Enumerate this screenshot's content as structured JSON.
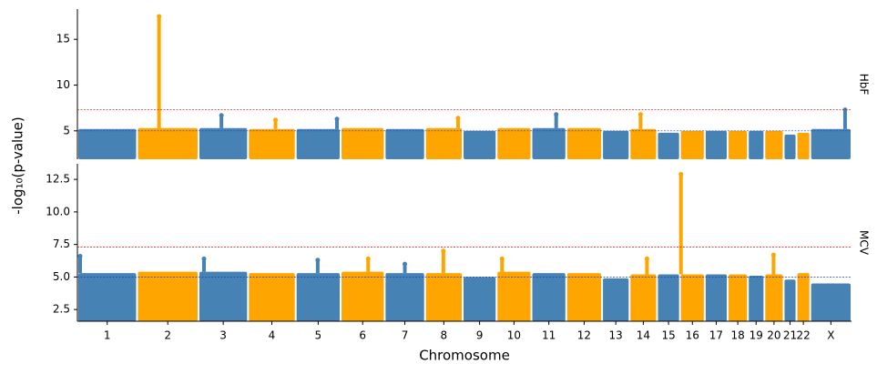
{
  "chart_data": {
    "type": "manhattan",
    "xlabel": "Chromosome",
    "ylabel": "-log₁₀(p-value)",
    "categories": [
      "1",
      "2",
      "3",
      "4",
      "5",
      "6",
      "7",
      "8",
      "9",
      "10",
      "11",
      "12",
      "13",
      "14",
      "15",
      "16",
      "17",
      "18",
      "19",
      "20",
      "21",
      "22",
      "X"
    ],
    "chrom_sizes": [
      65,
      67,
      54,
      52,
      49,
      48,
      44,
      41,
      37,
      38,
      38,
      39,
      30,
      30,
      25,
      27,
      25,
      22,
      18,
      21,
      14,
      15,
      45
    ],
    "colors": [
      "#4682b4",
      "#ffa500"
    ],
    "panels": [
      {
        "label": "HbF",
        "ylim": [
          1.9,
          18.3
        ],
        "yticks": [
          5,
          10,
          15
        ],
        "thresholds": [
          {
            "value": 7.3,
            "color": "#e00000"
          },
          {
            "value": 5,
            "color": "#1f3fbf"
          }
        ],
        "values": [
          5.2,
          5.3,
          5.3,
          5.2,
          5.2,
          5.3,
          5.2,
          5.3,
          5.0,
          5.3,
          5.3,
          5.3,
          5.0,
          5.2,
          4.8,
          5.0,
          5.0,
          5.0,
          5.0,
          5.0,
          4.6,
          4.8,
          5.2
        ],
        "peaks": {
          "chrom": [
            1,
            2,
            3,
            4,
            7,
            10,
            13,
            22
          ],
          "pos": [
            24,
            25,
            30,
            45,
            36,
            27,
            12,
            38
          ],
          "values": [
            17.5,
            6.7,
            6.2,
            6.3,
            6.4,
            6.8,
            6.8,
            7.3
          ]
        }
      },
      {
        "label": "MCV",
        "ylim": [
          1.6,
          13.7
        ],
        "yticks": [
          {
            "value": 2.5,
            "label": "2.5"
          },
          {
            "value": 5,
            "label": "5.0"
          },
          7.5,
          {
            "value": 10,
            "label": "10.0"
          },
          12.5
        ],
        "thresholds": [
          {
            "value": 7.3,
            "color": "#e00000"
          },
          {
            "value": 5,
            "color": "#1f3fbf"
          }
        ],
        "values": [
          5.3,
          5.4,
          5.4,
          5.3,
          5.3,
          5.4,
          5.3,
          5.3,
          5.0,
          5.4,
          5.3,
          5.3,
          4.9,
          5.2,
          5.2,
          5.2,
          5.2,
          5.2,
          5.1,
          5.2,
          4.8,
          5.3,
          4.5
        ],
        "peaks": {
          "chrom": [
            0,
            2,
            4,
            5,
            6,
            7,
            9,
            13,
            15,
            19
          ],
          "pos": [
            3,
            6,
            24,
            30,
            22,
            20,
            6,
            19,
            1,
            10
          ],
          "values": [
            6.6,
            6.4,
            6.3,
            6.4,
            6.0,
            7.0,
            6.4,
            6.4,
            12.9,
            6.7
          ]
        }
      }
    ]
  }
}
